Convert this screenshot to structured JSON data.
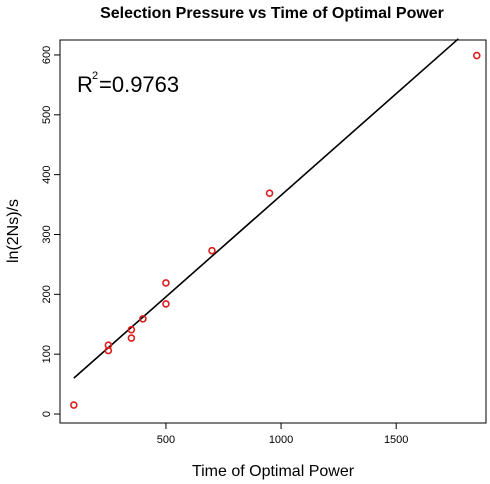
{
  "chart_data": {
    "type": "scatter",
    "title": "Selection Pressure vs Time of Optimal Power",
    "xlabel": "Time of Optimal Power",
    "ylabel": "ln(2Ns)/s",
    "xlim": [
      40,
      1890
    ],
    "ylim": [
      -15,
      625
    ],
    "x_ticks": [
      500,
      1000,
      1500
    ],
    "x_tick_labels": [
      "500",
      "1000",
      "1500"
    ],
    "y_ticks": [
      0,
      100,
      200,
      300,
      400,
      500,
      600
    ],
    "y_tick_labels": [
      "0",
      "100",
      "200",
      "300",
      "400",
      "500",
      "600"
    ],
    "grid": false,
    "points": [
      {
        "x": 100,
        "y": 15
      },
      {
        "x": 250,
        "y": 106
      },
      {
        "x": 250,
        "y": 115
      },
      {
        "x": 350,
        "y": 127
      },
      {
        "x": 350,
        "y": 141
      },
      {
        "x": 400,
        "y": 159
      },
      {
        "x": 500,
        "y": 184
      },
      {
        "x": 500,
        "y": 219
      },
      {
        "x": 700,
        "y": 273
      },
      {
        "x": 950,
        "y": 369
      },
      {
        "x": 1850,
        "y": 599
      }
    ],
    "fit_line": {
      "x0": 100,
      "y0": 60,
      "x1": 1770,
      "y1": 627
    },
    "annotation": {
      "base": "R",
      "sup": "2",
      "value": "=0.9763"
    },
    "point_color": "#dd1c1c",
    "line_color": "#000000"
  }
}
